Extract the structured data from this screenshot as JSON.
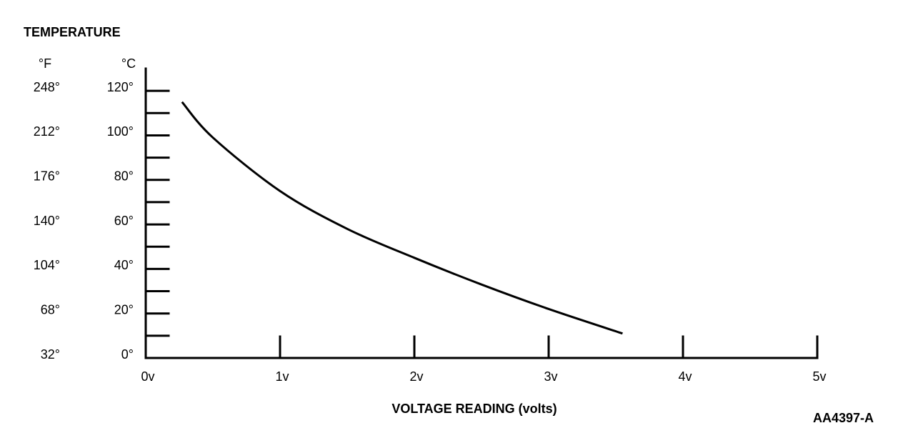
{
  "chart_data": {
    "type": "line",
    "title": "TEMPERATURE",
    "y2label": "°F",
    "ylabel": "°C",
    "xlabel": "VOLTAGE READING (volts)",
    "note": "AA4397-A",
    "xlim": [
      0,
      5
    ],
    "xticks": [
      {
        "value": 0,
        "label": "0v"
      },
      {
        "value": 1,
        "label": "1v"
      },
      {
        "value": 2,
        "label": "2v"
      },
      {
        "value": 3,
        "label": "3v"
      },
      {
        "value": 4,
        "label": "4v"
      },
      {
        "value": 5,
        "label": "5v"
      }
    ],
    "ylim": [
      0,
      130
    ],
    "yticks": [
      {
        "value": 0,
        "label": "0°"
      },
      {
        "value": 20,
        "label": "20°"
      },
      {
        "value": 40,
        "label": "40°"
      },
      {
        "value": 60,
        "label": "60°"
      },
      {
        "value": 80,
        "label": "80°"
      },
      {
        "value": 100,
        "label": "100°"
      },
      {
        "value": 120,
        "label": "120°"
      }
    ],
    "yminorticks": [
      10,
      30,
      50,
      70,
      90,
      110
    ],
    "y2lim": [
      32,
      266
    ],
    "y2ticks": [
      {
        "value": 32,
        "label": "32°"
      },
      {
        "value": 68,
        "label": "68°"
      },
      {
        "value": 104,
        "label": "104°"
      },
      {
        "value": 140,
        "label": "140°"
      },
      {
        "value": 176,
        "label": "176°"
      },
      {
        "value": 212,
        "label": "212°"
      },
      {
        "value": 248,
        "label": "248°"
      }
    ],
    "color": "#000000",
    "x": [
      0.27,
      0.5,
      1,
      1.5,
      2,
      2.5,
      3,
      3.55
    ],
    "values": [
      115,
      99,
      75,
      58,
      45,
      33,
      22,
      11
    ]
  }
}
